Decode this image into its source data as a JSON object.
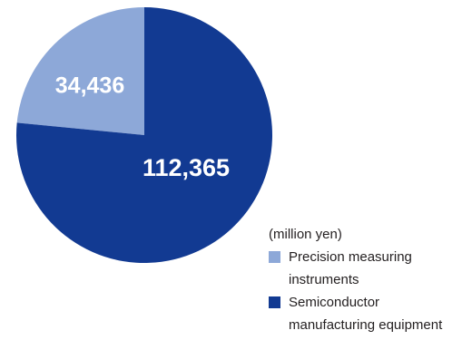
{
  "chart_data": {
    "type": "pie",
    "unit_label": "(million yen)",
    "slices": [
      {
        "name": "Precision measuring instruments",
        "name_lines": [
          "Precision measuring",
          "instruments"
        ],
        "value": 34436,
        "label": "34,436",
        "color": "#8da8d8"
      },
      {
        "name": "Semiconductor manufacturing equipment",
        "name_lines": [
          "Semiconductor",
          "manufacturing equipment"
        ],
        "value": 112365,
        "label": "112,365",
        "color": "#123a92"
      }
    ]
  }
}
